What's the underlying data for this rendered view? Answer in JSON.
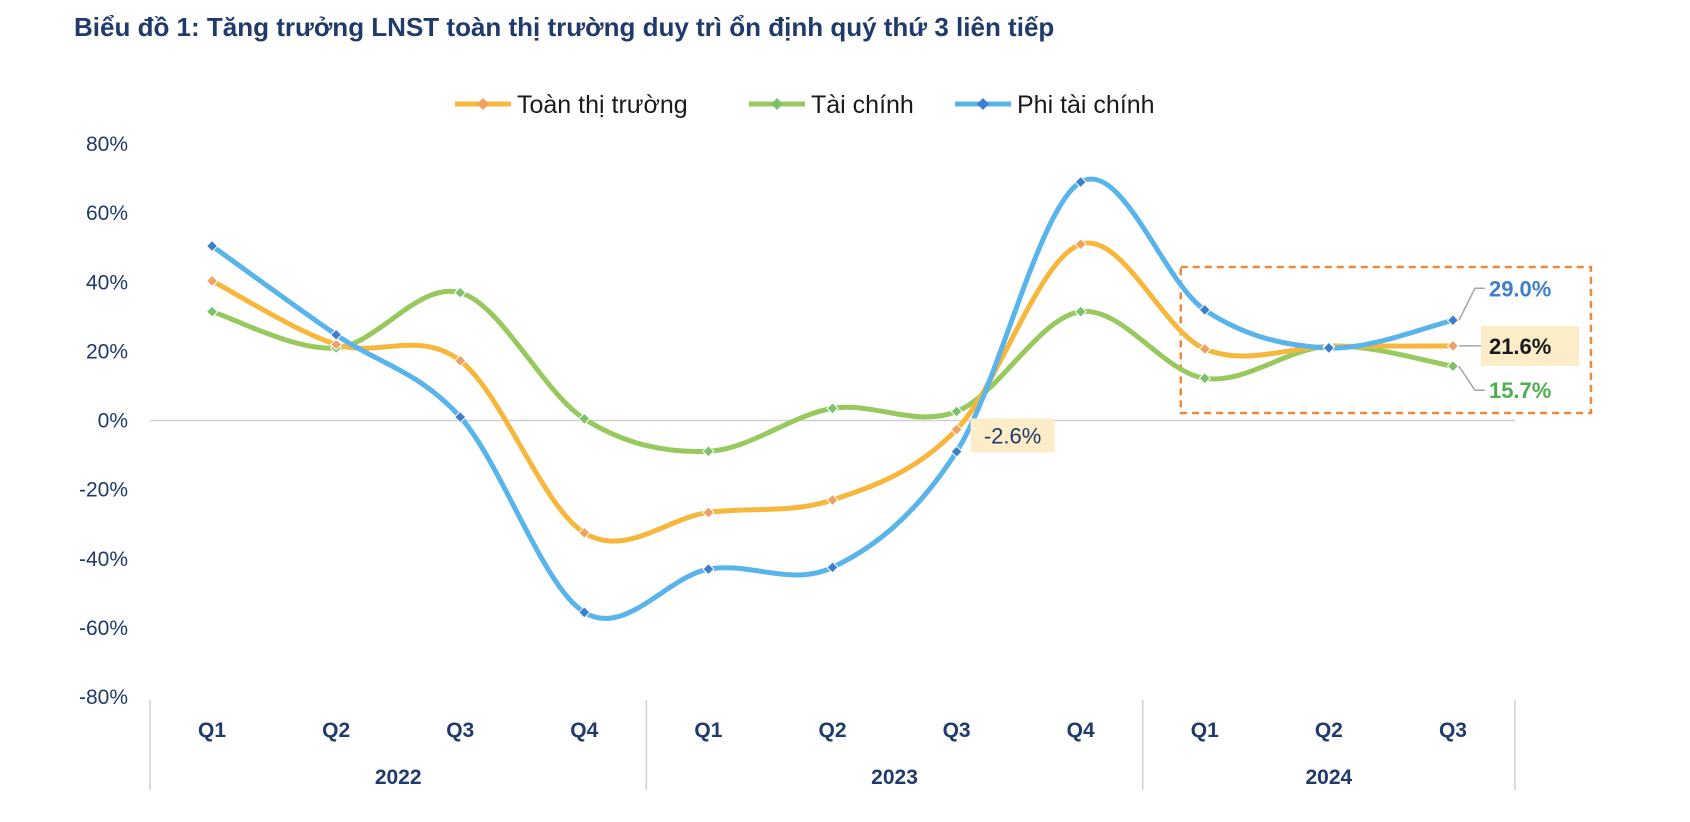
{
  "title": "Biểu đồ 1: Tăng trưởng LNST toàn thị trường duy trì ổn định quý thứ 3 liên tiếp",
  "chart_data": {
    "type": "line",
    "title": "Biểu đồ 1: Tăng trưởng LNST toàn thị trường duy trì ổn định quý thứ 3 liên tiếp",
    "categories": [
      "Q1",
      "Q2",
      "Q3",
      "Q4",
      "Q1",
      "Q2",
      "Q3",
      "Q4",
      "Q1",
      "Q2",
      "Q3"
    ],
    "groups": [
      {
        "label": "2022",
        "count": 4
      },
      {
        "label": "2023",
        "count": 4
      },
      {
        "label": "2024",
        "count": 3
      }
    ],
    "y_ticks": [
      "80%",
      "60%",
      "40%",
      "20%",
      "0%",
      "-20%",
      "-40%",
      "-60%",
      "-80%"
    ],
    "ylim": [
      -80,
      80
    ],
    "smooth": true,
    "legend_position": "top-center",
    "series": [
      {
        "name": "Toàn thị trường",
        "color": "#f6b73c",
        "marker_color": "#f0a060",
        "values": [
          40.4,
          22.0,
          17.3,
          -32.5,
          -26.6,
          -23.0,
          -2.6,
          51.0,
          20.7,
          21.4,
          21.6
        ]
      },
      {
        "name": "Tài chính",
        "color": "#98c95e",
        "marker_color": "#7ac36a",
        "values": [
          31.5,
          21.0,
          37.0,
          0.5,
          -8.9,
          3.5,
          2.6,
          31.5,
          12.2,
          21.5,
          15.7
        ]
      },
      {
        "name": "Phi tài chính",
        "color": "#58b4ea",
        "marker_color": "#3d7fcc",
        "values": [
          50.5,
          24.8,
          1.0,
          -55.5,
          -43.0,
          -42.5,
          -9.0,
          69.0,
          32.0,
          21.0,
          29.0
        ]
      }
    ],
    "annotations": [
      {
        "text": "-2.6%",
        "series": 0,
        "index": 6,
        "style": "label-box"
      },
      {
        "text": "29.0%",
        "series": 2,
        "index": 10,
        "color": "#3d7fcc"
      },
      {
        "text": "21.6%",
        "series": 0,
        "index": 10,
        "color": "#1a1a1a"
      },
      {
        "text": "15.7%",
        "series": 1,
        "index": 10,
        "color": "#4fae4f"
      }
    ],
    "highlight_box": {
      "from_index": 8,
      "to_index": 10,
      "color": "#e88a3e",
      "style": "dashed"
    }
  }
}
